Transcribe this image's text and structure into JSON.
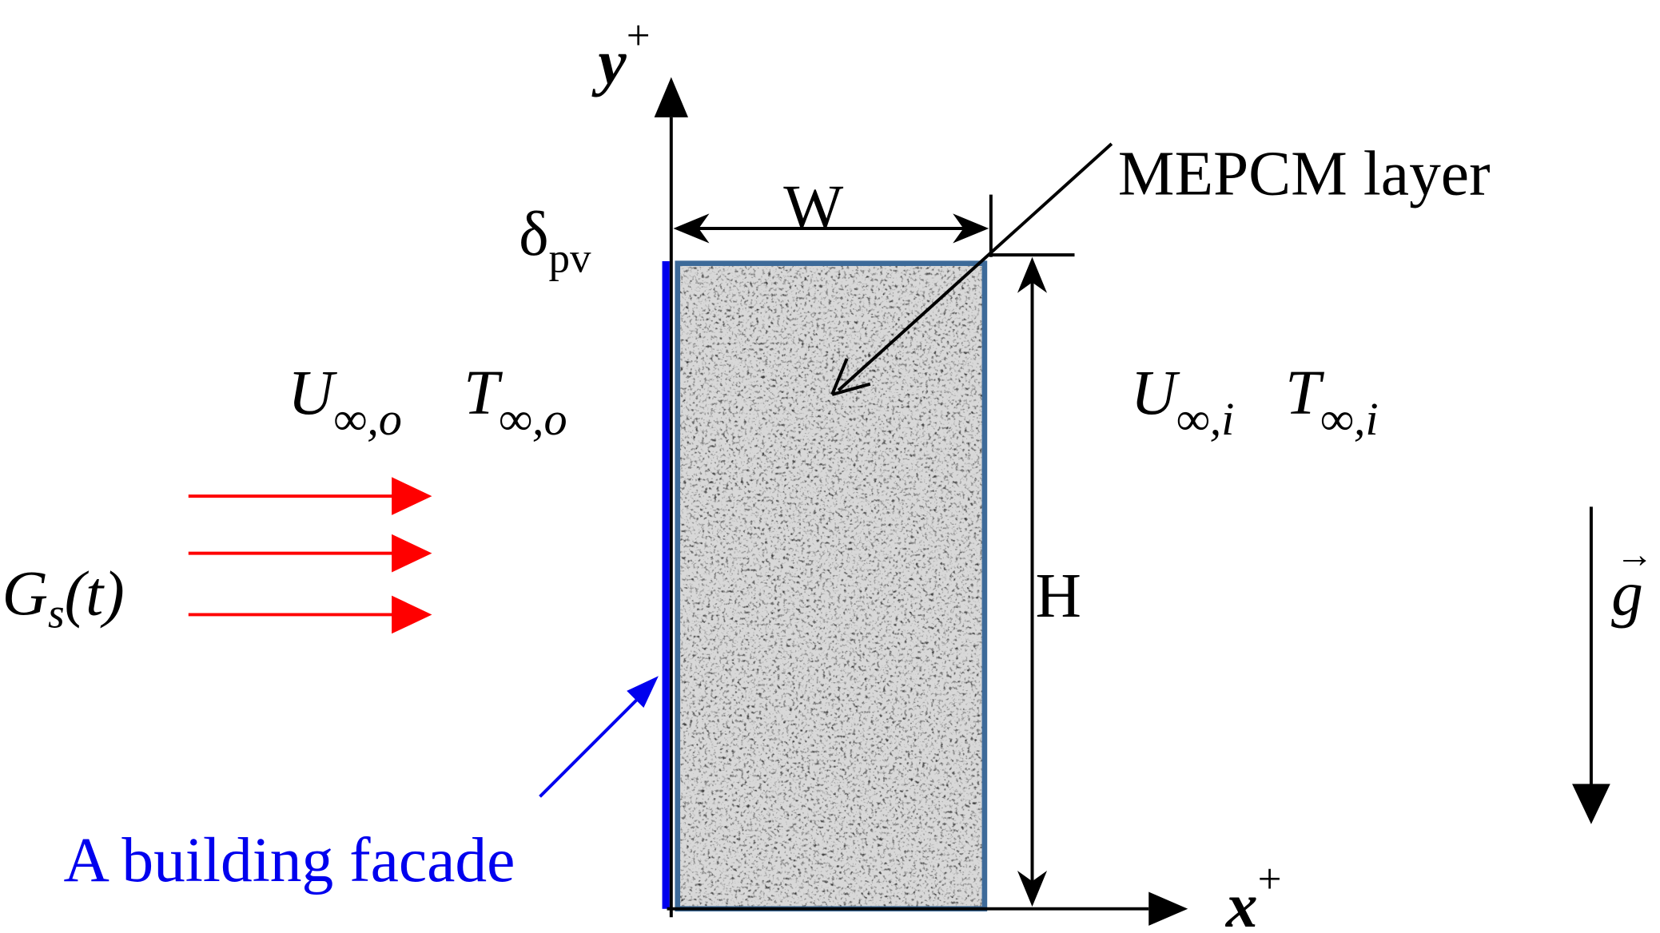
{
  "axes": {
    "y": {
      "symbol": "y",
      "sup": "+"
    },
    "x": {
      "symbol": "x",
      "sup": "+"
    }
  },
  "dimensions": {
    "width": "W",
    "height": "H",
    "pv_thickness": {
      "symbol": "δ",
      "sub": "pv"
    }
  },
  "labels": {
    "layer": "MEPCM layer",
    "facade": "A building facade"
  },
  "outside": {
    "velocity": {
      "symbol": "U",
      "sub": "∞,o"
    },
    "temperature": {
      "symbol": "T",
      "sub": "∞,o"
    }
  },
  "inside": {
    "velocity": {
      "symbol": "U",
      "sub": "∞,i"
    },
    "temperature": {
      "symbol": "T",
      "sub": "∞,i"
    }
  },
  "solar": {
    "symbol": "G",
    "sub": "s",
    "arg": "(t)"
  },
  "gravity": {
    "symbol": "g",
    "accent": "→"
  }
}
